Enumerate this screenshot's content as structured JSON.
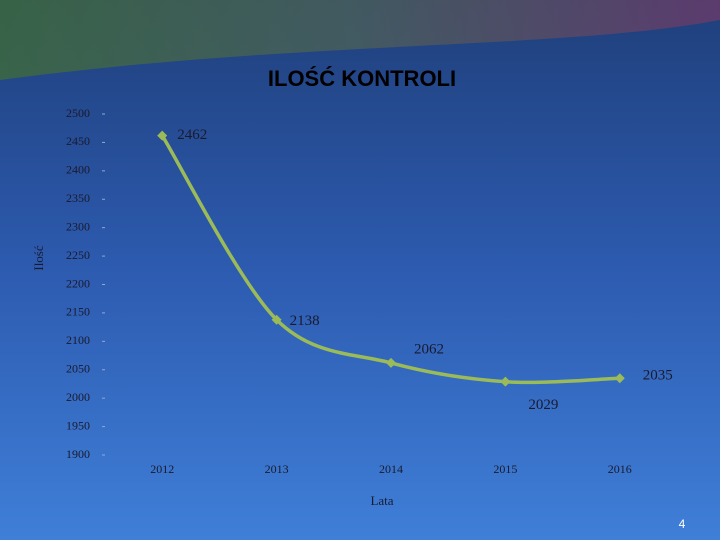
{
  "chart_data": {
    "type": "line",
    "title": "ILOŚĆ KONTROLI",
    "x_label": "Lata",
    "y_label": "Ilość",
    "categories": [
      "2012",
      "2013",
      "2014",
      "2015",
      "2016"
    ],
    "series": [
      {
        "name": "Ilość",
        "color": "#9bbb59",
        "values": [
          2462,
          2138,
          2062,
          2029,
          2035
        ]
      }
    ],
    "ylim": [
      1900,
      2500
    ],
    "yticks": [
      1900,
      1950,
      2000,
      2050,
      2100,
      2150,
      2200,
      2250,
      2300,
      2350,
      2400,
      2450,
      2500
    ],
    "grid": false,
    "smooth": true
  },
  "page_number": "4"
}
